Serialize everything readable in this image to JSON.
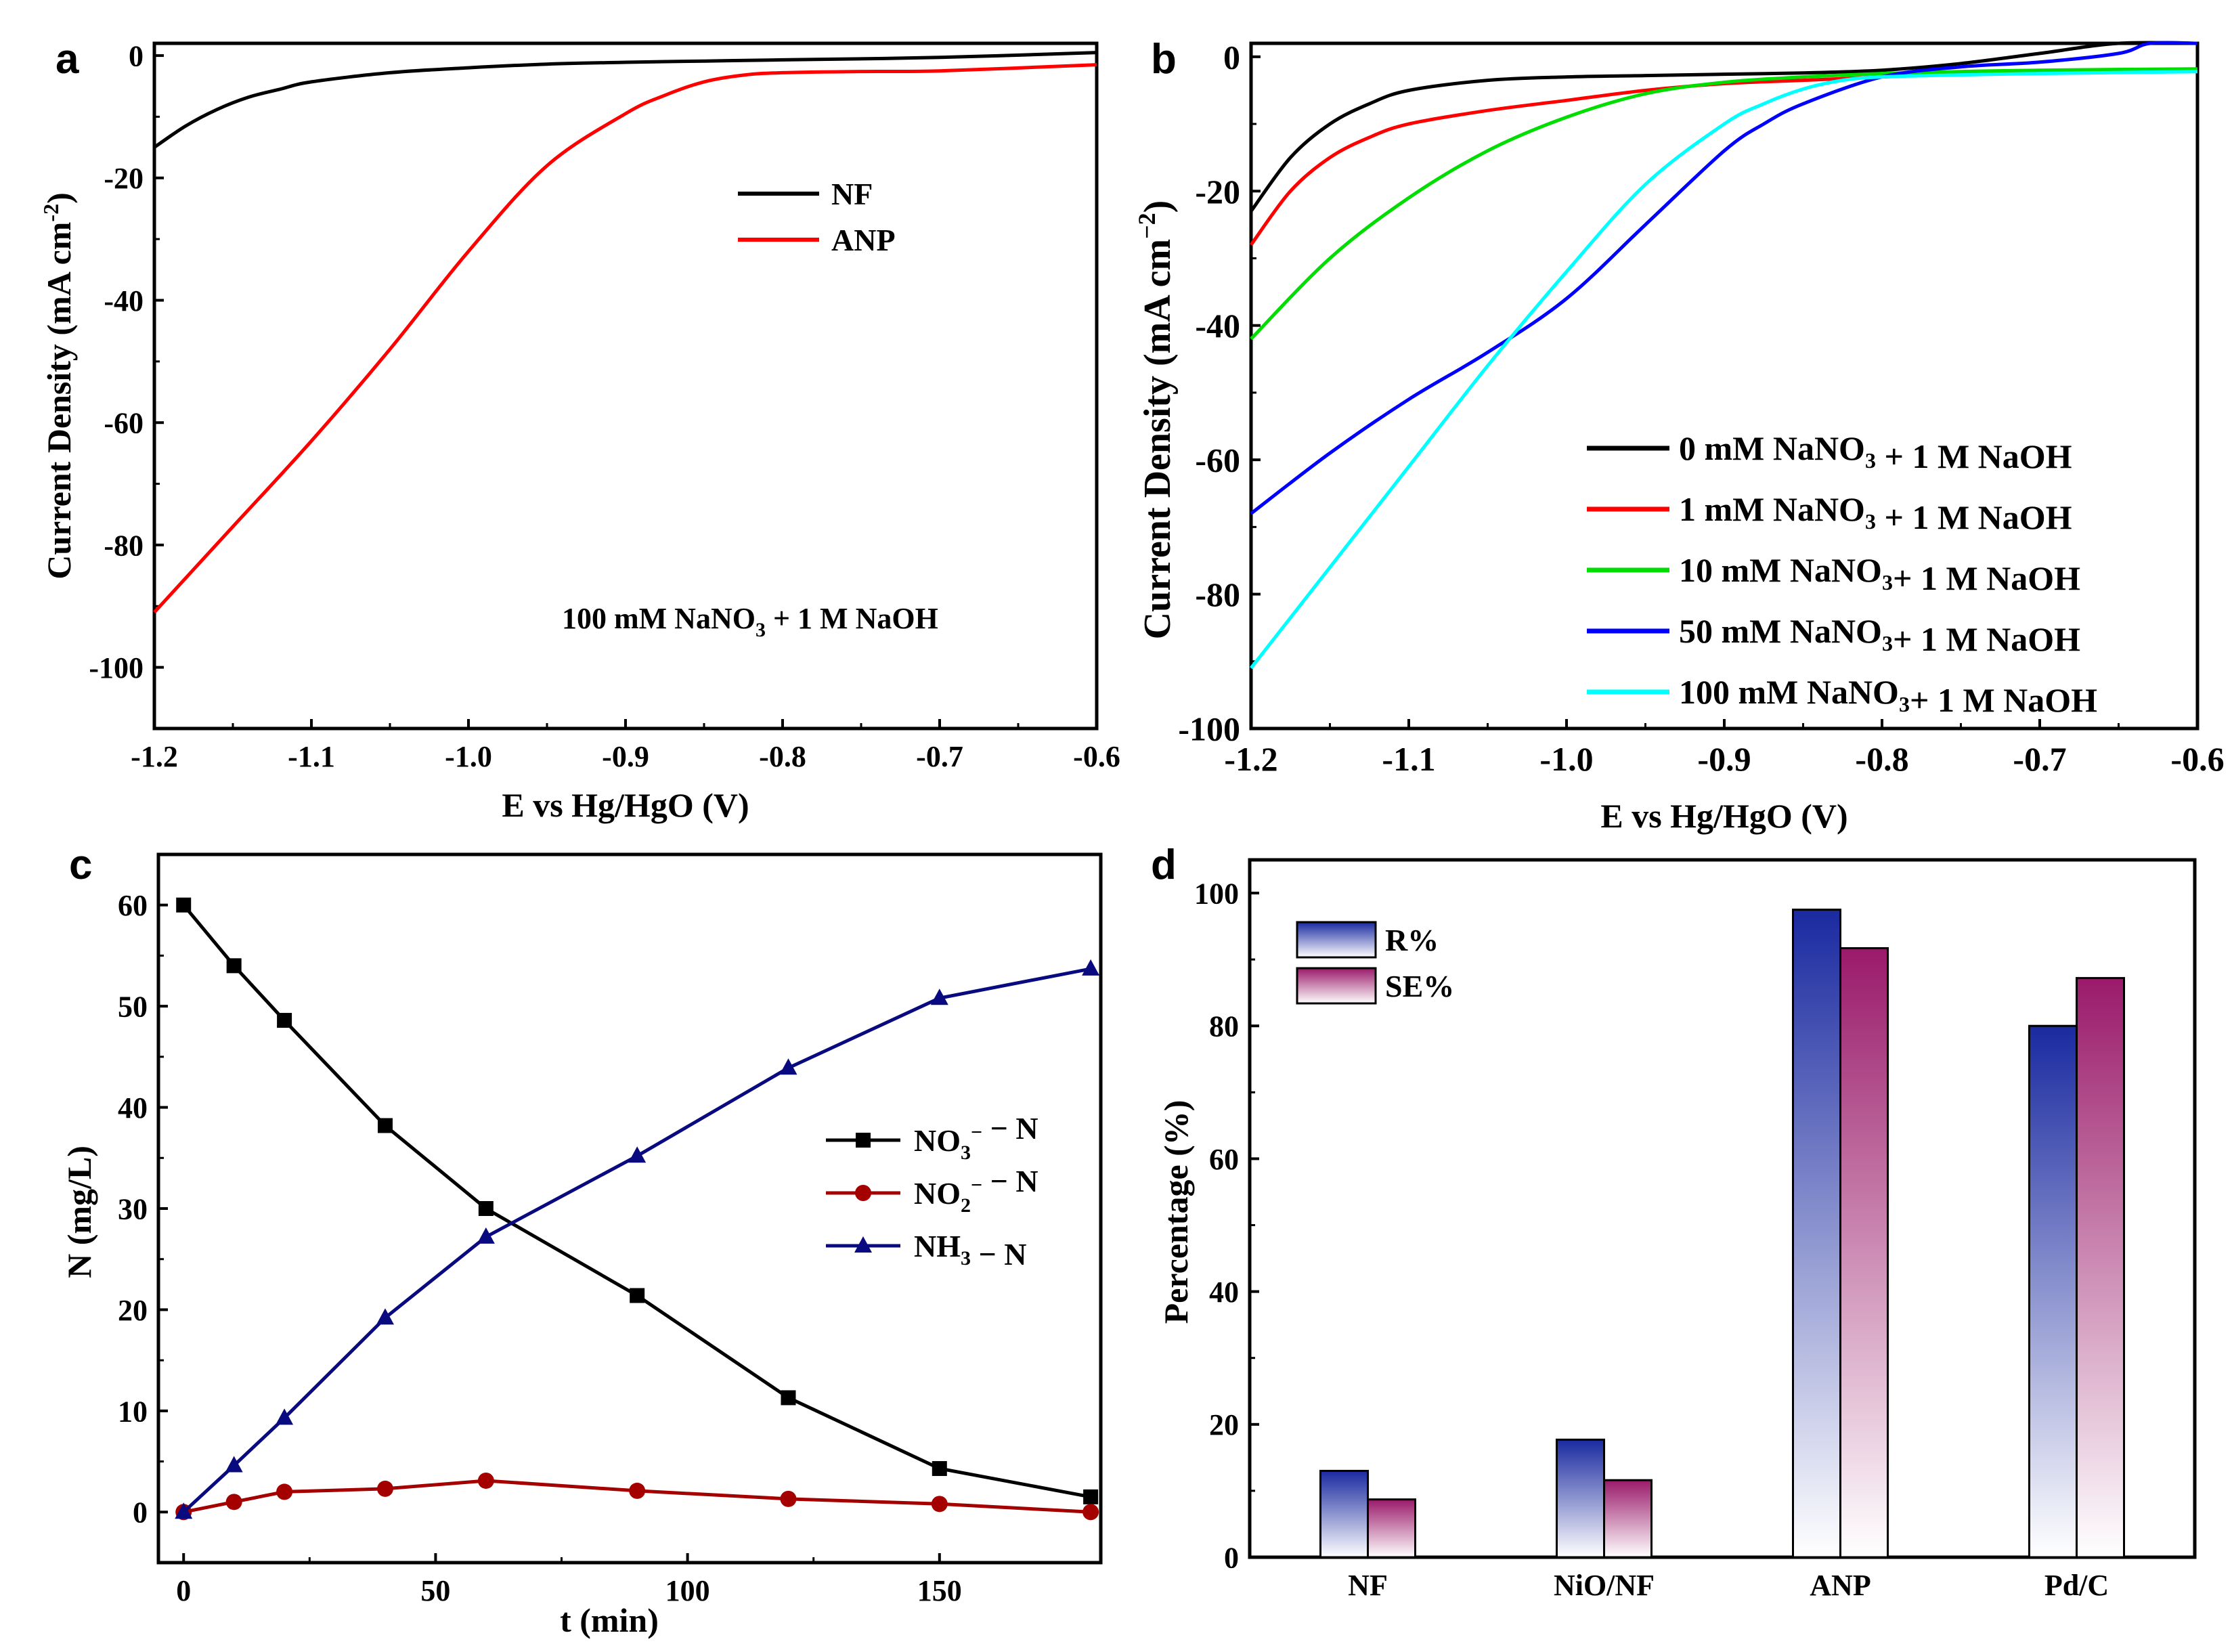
{
  "chart_data": [
    {
      "panel": "a",
      "type": "line",
      "xlabel": "E vs Hg/HgO (V)",
      "ylabel": "Current Density (mA cm-2)",
      "xlim": [
        -1.2,
        -0.6
      ],
      "ylim": [
        -110,
        2
      ],
      "xticks": [
        -1.2,
        -1.1,
        -1.0,
        -0.9,
        -0.8,
        -0.7,
        -0.6
      ],
      "xtick_labels": [
        "-1.2",
        "-1.1",
        "-1.0",
        "-0.9",
        "-0.8",
        "-0.7",
        "-0.6"
      ],
      "yticks": [
        0,
        -20,
        -40,
        -60,
        -80,
        -100
      ],
      "ytick_labels": [
        "0",
        "-20",
        "-40",
        "-60",
        "-80",
        "-100"
      ],
      "annotation": "100 mM NaNO3 + 1 M NaOH",
      "legend": "top-right",
      "series": [
        {
          "name": "NF",
          "color": "#000000",
          "x": [
            -1.2,
            -1.18,
            -1.16,
            -1.14,
            -1.12,
            -1.1,
            -1.05,
            -1.0,
            -0.95,
            -0.9,
            -0.85,
            -0.8,
            -0.7,
            -0.6
          ],
          "y": [
            -15,
            -11.5,
            -8.8,
            -6.8,
            -5.5,
            -4.3,
            -2.8,
            -2.0,
            -1.4,
            -1.1,
            -0.9,
            -0.7,
            -0.3,
            0.5
          ]
        },
        {
          "name": "ANP",
          "color": "#ff0000",
          "x": [
            -1.2,
            -1.15,
            -1.1,
            -1.05,
            -1.0,
            -0.95,
            -0.9,
            -0.875,
            -0.85,
            -0.825,
            -0.8,
            -0.75,
            -0.7,
            -0.6
          ],
          "y": [
            -91,
            -77,
            -63,
            -48,
            -32,
            -18,
            -9.5,
            -6.5,
            -4.3,
            -3.2,
            -2.8,
            -2.6,
            -2.5,
            -1.5
          ]
        }
      ]
    },
    {
      "panel": "b",
      "type": "line",
      "xlabel": "E vs Hg/HgO (V)",
      "ylabel": "Current Density (mA cm-2)",
      "xlim": [
        -1.2,
        -0.6
      ],
      "ylim": [
        -100,
        2
      ],
      "xticks": [
        -1.2,
        -1.1,
        -1.0,
        -0.9,
        -0.8,
        -0.7,
        -0.6
      ],
      "xtick_labels": [
        "-1.2",
        "-1.1",
        "-1.0",
        "-0.9",
        "-0.8",
        "-0.7",
        "-0.6"
      ],
      "yticks": [
        0,
        -20,
        -40,
        -60,
        -80,
        -100
      ],
      "ytick_labels": [
        "0",
        "-20",
        "-40",
        "-60",
        "-80",
        "-100"
      ],
      "legend": "bottom-right",
      "series": [
        {
          "name": "0 mM NaNO3 + 1 M NaOH",
          "color": "#000000",
          "x": [
            -1.2,
            -1.175,
            -1.15,
            -1.125,
            -1.1,
            -1.05,
            -1.0,
            -0.95,
            -0.9,
            -0.85,
            -0.8,
            -0.75,
            -0.7,
            -0.65,
            -0.6
          ],
          "y": [
            -23,
            -15,
            -10,
            -7,
            -5,
            -3.5,
            -3,
            -2.8,
            -2.6,
            -2.4,
            -2,
            -1,
            0.5,
            2,
            2
          ]
        },
        {
          "name": "1 mM NaNO3 + 1 M NaOH",
          "color": "#ff0000",
          "x": [
            -1.2,
            -1.175,
            -1.15,
            -1.125,
            -1.1,
            -1.05,
            -1.0,
            -0.95,
            -0.9,
            -0.85,
            -0.8,
            -0.75,
            -0.7,
            -0.6
          ],
          "y": [
            -28,
            -20,
            -15,
            -12,
            -10,
            -8,
            -6.5,
            -5,
            -4,
            -3.5,
            -3,
            -2.5,
            -2.3,
            -2
          ]
        },
        {
          "name": "10 mM NaNO3+ 1 M NaOH",
          "color": "#00dd00",
          "x": [
            -1.2,
            -1.15,
            -1.1,
            -1.05,
            -1.0,
            -0.95,
            -0.9,
            -0.85,
            -0.8,
            -0.75,
            -0.7,
            -0.6
          ],
          "y": [
            -42,
            -30,
            -21,
            -14,
            -9,
            -5.5,
            -3.8,
            -3,
            -2.5,
            -2.2,
            -2,
            -1.8
          ]
        },
        {
          "name": "50 mM NaNO3+ 1 M NaOH",
          "color": "#0000ff",
          "x": [
            -1.2,
            -1.15,
            -1.1,
            -1.05,
            -1.0,
            -0.95,
            -0.9,
            -0.875,
            -0.85,
            -0.8,
            -0.75,
            -0.7,
            -0.65,
            -0.63,
            -0.6
          ],
          "y": [
            -68,
            -59,
            -51,
            -44,
            -36,
            -25,
            -14,
            -10,
            -7,
            -3,
            -1.5,
            -0.8,
            0.5,
            2,
            2
          ]
        },
        {
          "name": "100 mM NaNO3+ 1 M NaOH",
          "color": "#00ffff",
          "x": [
            -1.2,
            -1.15,
            -1.1,
            -1.05,
            -1.0,
            -0.95,
            -0.9,
            -0.875,
            -0.85,
            -0.825,
            -0.8,
            -0.75,
            -0.7,
            -0.6
          ],
          "y": [
            -91,
            -76,
            -61,
            -46,
            -32,
            -19,
            -10,
            -7,
            -4.8,
            -3.5,
            -3,
            -2.7,
            -2.5,
            -2.2
          ]
        }
      ]
    },
    {
      "panel": "c",
      "type": "line",
      "xlabel": "t (min)",
      "ylabel": "N (mg/L)",
      "xlim": [
        -5,
        182
      ],
      "ylim": [
        -5,
        65
      ],
      "xticks": [
        0,
        50,
        100,
        150
      ],
      "xtick_labels": [
        "0",
        "50",
        "100",
        "150"
      ],
      "yticks": [
        0,
        10,
        20,
        30,
        40,
        50,
        60
      ],
      "ytick_labels": [
        "0",
        "10",
        "20",
        "30",
        "40",
        "50",
        "60"
      ],
      "legend": "middle-right",
      "series": [
        {
          "name": "NO3− − N",
          "color": "#000000",
          "marker": "square",
          "x": [
            0,
            10,
            20,
            40,
            60,
            90,
            120,
            150,
            180
          ],
          "y": [
            60,
            54,
            48.6,
            38.2,
            30,
            21.4,
            11.3,
            4.3,
            1.5
          ]
        },
        {
          "name": "NO2− − N",
          "color": "#a50000",
          "marker": "circle",
          "x": [
            0,
            10,
            20,
            40,
            60,
            90,
            120,
            150,
            180
          ],
          "y": [
            0,
            1,
            2,
            2.3,
            3.1,
            2.1,
            1.3,
            0.8,
            0
          ]
        },
        {
          "name": "NH3 − N",
          "color": "#0a0a80",
          "marker": "triangle",
          "x": [
            0,
            10,
            20,
            40,
            60,
            90,
            120,
            150,
            180
          ],
          "y": [
            0,
            4.6,
            9.3,
            19.2,
            27.2,
            35.2,
            43.9,
            50.8,
            53.7
          ]
        }
      ]
    },
    {
      "panel": "d",
      "type": "bar",
      "ylabel": "Percentage (%)",
      "ylim": [
        0,
        105
      ],
      "yticks": [
        0,
        20,
        40,
        60,
        80,
        100
      ],
      "ytick_labels": [
        "0",
        "20",
        "40",
        "60",
        "80",
        "100"
      ],
      "categories": [
        "NF",
        "NiO/NF",
        "ANP",
        "Pd/C"
      ],
      "legend": "top-left",
      "series": [
        {
          "name": "R%",
          "color": "#1a2aa0",
          "values": [
            13,
            17.7,
            97.5,
            80
          ]
        },
        {
          "name": "SE%",
          "color": "#9a1a6a",
          "values": [
            8.7,
            11.6,
            91.7,
            87.2
          ]
        }
      ]
    }
  ]
}
